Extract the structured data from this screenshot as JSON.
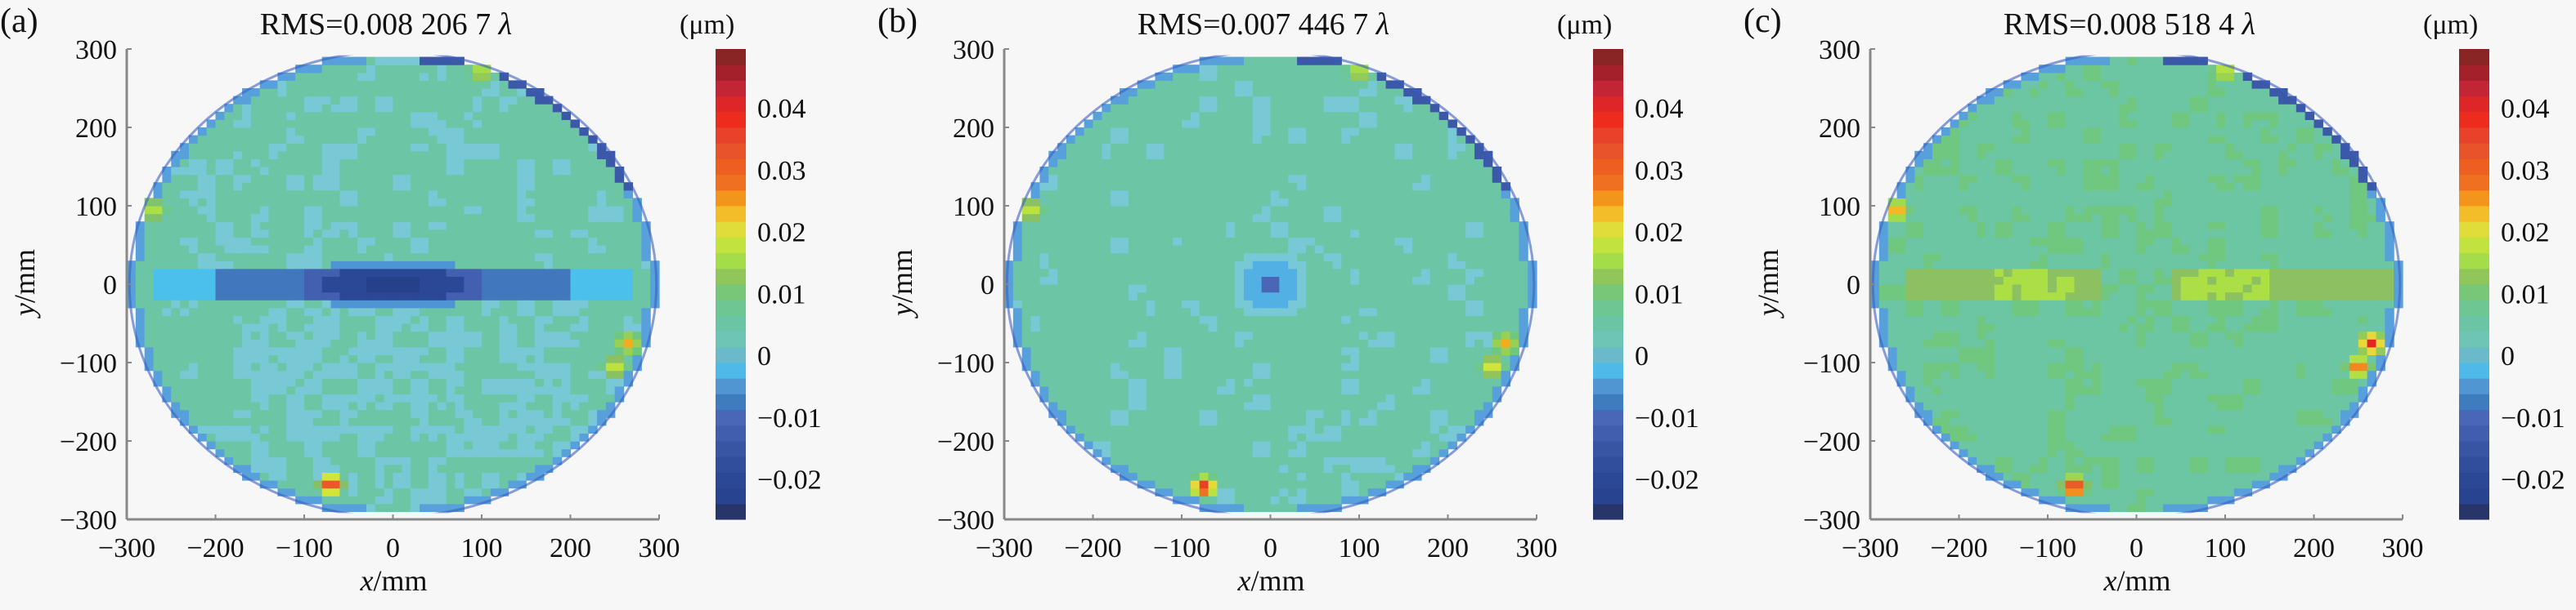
{
  "chart_data": [
    {
      "type": "heatmap",
      "panel_label": "(a)",
      "title": "RMS=0.008 206 7",
      "title_symbol": "λ",
      "xlabel_var": "x",
      "xlabel_unit": "/mm",
      "ylabel_var": "y",
      "ylabel_unit": "/mm",
      "xlim": [
        -300,
        300
      ],
      "ylim": [
        -300,
        300
      ],
      "xticks": [
        "−300",
        "−200",
        "−100",
        "0",
        "100",
        "200",
        "300"
      ],
      "yticks": [
        "300",
        "200",
        "100",
        "0",
        "−100",
        "−200",
        "−300"
      ],
      "colorbar": {
        "unit": "(μm)",
        "range": [
          -0.0265,
          0.0495
        ],
        "ticks": [
          "0.04",
          "0.03",
          "0.02",
          "0.01",
          "0",
          "−0.01",
          "−0.02"
        ],
        "tick_values": [
          0.04,
          0.03,
          0.02,
          0.01,
          0,
          -0.01,
          -0.02
        ]
      },
      "aperture_radius": 297,
      "background_value": 0.0055,
      "noise": {
        "value": 0.001,
        "probability": 0.3,
        "lower_half_probability": 0.6
      },
      "feature": "horizontal-trough",
      "trough": {
        "y_half_width": 20,
        "x_range": [
          -270,
          270
        ],
        "levels": [
          {
            "abs_x_above": 200,
            "value": -0.002
          },
          {
            "abs_x_above": 100,
            "value": -0.008
          },
          {
            "abs_x_above": 0,
            "value": -0.012
          }
        ],
        "core_value": -0.02,
        "center_value": -0.024
      },
      "hotspots": [
        {
          "x": -270,
          "y": 95,
          "peak": 0.02
        },
        {
          "x": 100,
          "y": 272,
          "peak": 0.02
        },
        {
          "x": -70,
          "y": -255,
          "peak": 0.042
        },
        {
          "x": 265,
          "y": -75,
          "peak": 0.024
        },
        {
          "x": 250,
          "y": -105,
          "peak": 0.022
        }
      ]
    },
    {
      "type": "heatmap",
      "panel_label": "(b)",
      "title": "RMS=0.007 446 7",
      "title_symbol": "λ",
      "xlabel_var": "x",
      "xlabel_unit": "/mm",
      "ylabel_var": "y",
      "ylabel_unit": "/mm",
      "xlim": [
        -300,
        300
      ],
      "ylim": [
        -300,
        300
      ],
      "xticks": [
        "−300",
        "−200",
        "−100",
        "0",
        "100",
        "200",
        "300"
      ],
      "yticks": [
        "300",
        "200",
        "100",
        "0",
        "−100",
        "−200",
        "−300"
      ],
      "colorbar": {
        "unit": "(μm)",
        "range": [
          -0.0265,
          0.0495
        ],
        "ticks": [
          "0.04",
          "0.03",
          "0.02",
          "0.01",
          "0",
          "−0.01",
          "−0.02"
        ],
        "tick_values": [
          0.04,
          0.03,
          0.02,
          0.01,
          0,
          -0.01,
          -0.02
        ]
      },
      "aperture_radius": 297,
      "background_value": 0.0055,
      "noise": {
        "value": 0.001,
        "probability": 0.12,
        "lower_half_probability": 0.18
      },
      "feature": "center-dip",
      "dip": {
        "rings": [
          {
            "r": 15,
            "value": -0.01
          },
          {
            "r": 30,
            "value": -0.003
          },
          {
            "r": 45,
            "value": 0.001
          }
        ]
      },
      "hotspots": [
        {
          "x": -270,
          "y": 95,
          "peak": 0.022
        },
        {
          "x": 100,
          "y": 272,
          "peak": 0.02
        },
        {
          "x": -75,
          "y": -258,
          "peak": 0.042
        },
        {
          "x": 265,
          "y": -75,
          "peak": 0.024
        },
        {
          "x": 250,
          "y": -105,
          "peak": 0.024
        }
      ]
    },
    {
      "type": "heatmap",
      "panel_label": "(c)",
      "title": "RMS=0.008 518 4",
      "title_symbol": "λ",
      "xlabel_var": "x",
      "xlabel_unit": "/mm",
      "ylabel_var": "y",
      "ylabel_unit": "/mm",
      "xlim": [
        -300,
        300
      ],
      "ylim": [
        -300,
        300
      ],
      "xticks": [
        "−300",
        "−200",
        "−100",
        "0",
        "100",
        "200",
        "300"
      ],
      "yticks": [
        "300",
        "200",
        "100",
        "0",
        "−100",
        "−200",
        "−300"
      ],
      "colorbar": {
        "unit": "(μm)",
        "range": [
          -0.0265,
          0.0495
        ],
        "ticks": [
          "0.04",
          "0.03",
          "0.02",
          "0.01",
          "0",
          "−0.01",
          "−0.02"
        ],
        "tick_values": [
          0.04,
          0.03,
          0.02,
          0.01,
          0,
          -0.01,
          -0.02
        ]
      },
      "aperture_radius": 297,
      "background_value": 0.0058,
      "noise": {
        "value": 0.0095,
        "probability": 0.3,
        "lower_half_probability": 0.3
      },
      "feature": "horizontal-ridge",
      "ridge": {
        "y_range": [
          -20,
          20
        ],
        "x_range": [
          -260,
          290
        ],
        "gap": [
          -40,
          40
        ],
        "value": 0.012,
        "bright_segments": [
          [
            -160,
            -70
          ],
          [
            50,
            150
          ]
        ],
        "bright_value": 0.016
      },
      "hotspots": [
        {
          "x": -270,
          "y": 95,
          "peak": 0.03
        },
        {
          "x": 100,
          "y": 272,
          "peak": 0.022
        },
        {
          "x": -70,
          "y": -258,
          "peak": 0.044
        },
        {
          "x": 265,
          "y": -75,
          "peak": 0.04
        },
        {
          "x": 250,
          "y": -105,
          "peak": 0.034
        }
      ]
    }
  ],
  "colormap": [
    [
      -0.0265,
      "#2a2a4a"
    ],
    [
      -0.024,
      "#27408c"
    ],
    [
      -0.019,
      "#2c4a98"
    ],
    [
      -0.014,
      "#3c58a8"
    ],
    [
      -0.01,
      "#4a66b6"
    ],
    [
      -0.007,
      "#3c80c0"
    ],
    [
      -0.004,
      "#58a0dc"
    ],
    [
      -0.002,
      "#4cc0ec"
    ],
    [
      0.0,
      "#6ab8c8"
    ],
    [
      0.0015,
      "#80d0dc"
    ],
    [
      0.003,
      "#6ac2a8"
    ],
    [
      0.006,
      "#6cc6a4"
    ],
    [
      0.0095,
      "#70c880"
    ],
    [
      0.012,
      "#8cc060"
    ],
    [
      0.015,
      "#a0dc4a"
    ],
    [
      0.019,
      "#d0e63a"
    ],
    [
      0.021,
      "#e8d83a"
    ],
    [
      0.023,
      "#f4bc28"
    ],
    [
      0.025,
      "#f59a18"
    ],
    [
      0.027,
      "#ec7c28"
    ],
    [
      0.029,
      "#f06418"
    ],
    [
      0.032,
      "#e85a2a"
    ],
    [
      0.036,
      "#e8402a"
    ],
    [
      0.039,
      "#ee2418"
    ],
    [
      0.042,
      "#d02838"
    ],
    [
      0.046,
      "#a0202a"
    ],
    [
      0.0495,
      "#7b2a22"
    ]
  ]
}
